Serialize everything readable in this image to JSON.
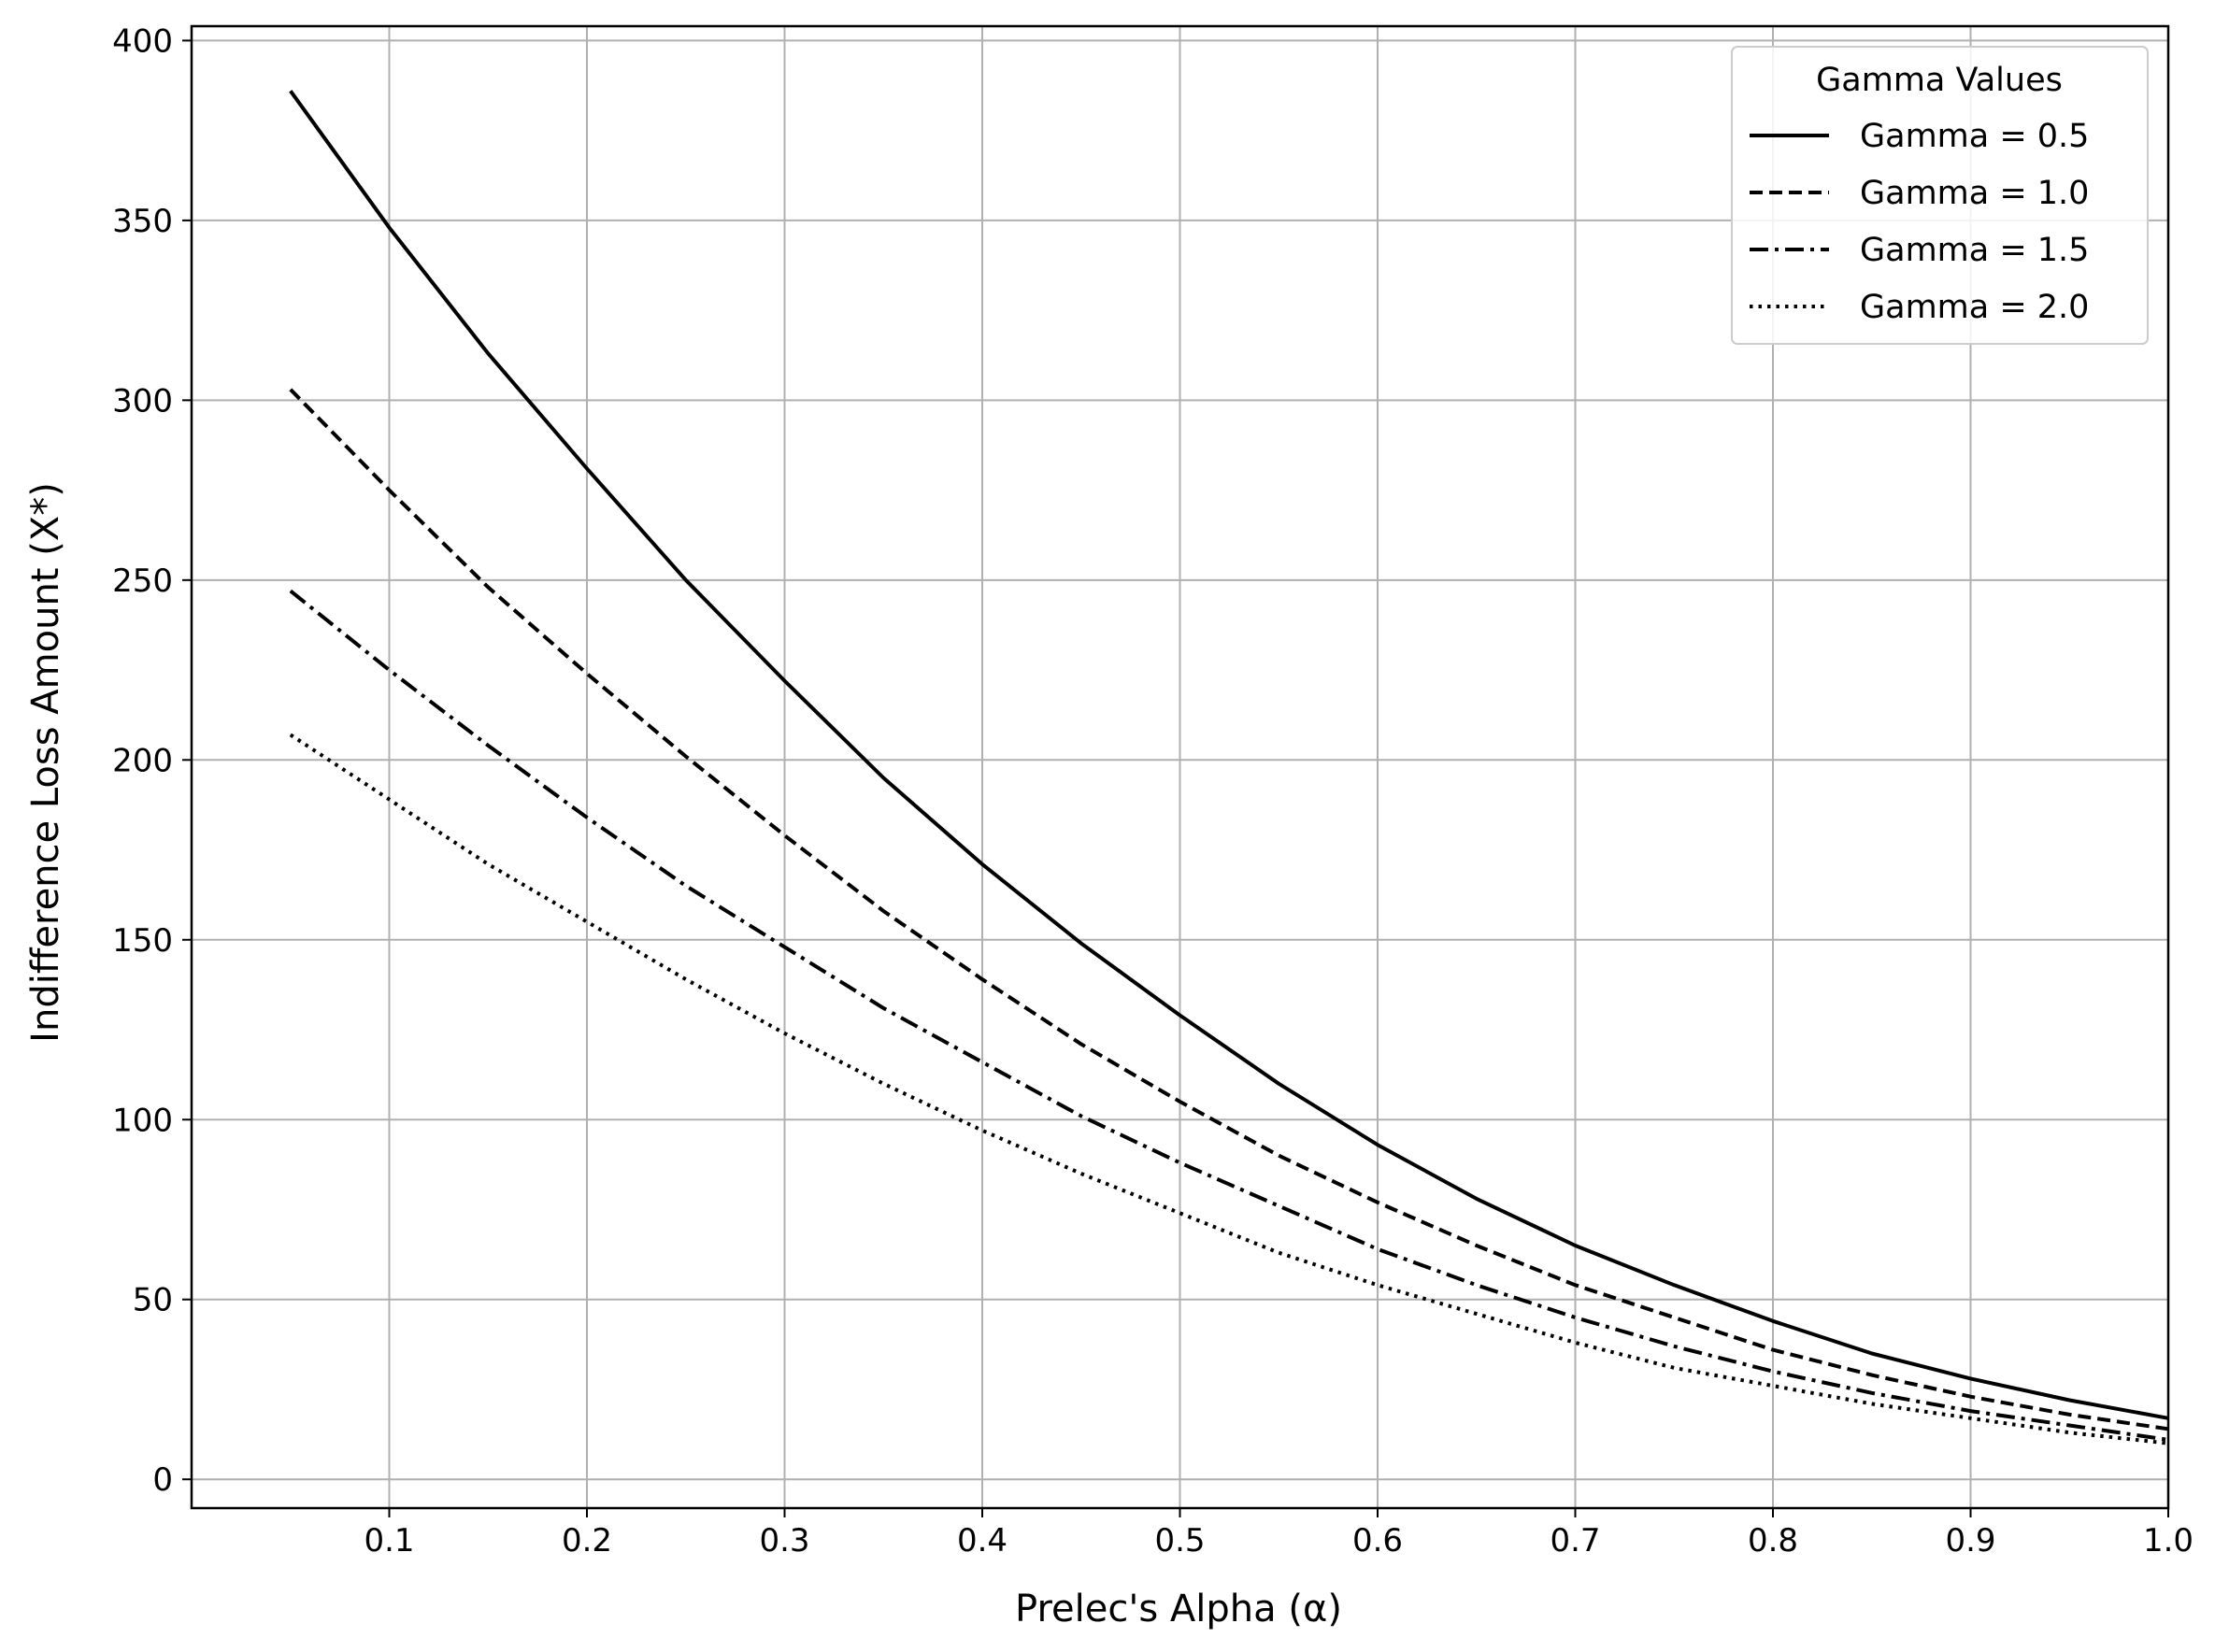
{
  "chart_data": {
    "type": "line",
    "xlabel": "Prelec's Alpha (α)",
    "ylabel": "Indifference Loss Amount (X*)",
    "xlim": [
      0.0,
      1.0
    ],
    "ylim": [
      -8,
      404
    ],
    "x_ticks": [
      0.1,
      0.2,
      0.3,
      0.4,
      0.5,
      0.6,
      0.7,
      0.8,
      0.9,
      1.0
    ],
    "x_tick_labels": [
      "0.1",
      "0.2",
      "0.3",
      "0.4",
      "0.5",
      "0.6",
      "0.7",
      "0.8",
      "0.9",
      "1.0"
    ],
    "y_ticks": [
      0,
      50,
      100,
      150,
      200,
      250,
      300,
      350,
      400
    ],
    "y_tick_labels": [
      "0",
      "50",
      "100",
      "150",
      "200",
      "250",
      "300",
      "350",
      "400"
    ],
    "grid": true,
    "legend": {
      "title": "Gamma Values",
      "position": "top-right"
    },
    "x": [
      0.05,
      0.1,
      0.15,
      0.2,
      0.25,
      0.3,
      0.35,
      0.4,
      0.45,
      0.5,
      0.55,
      0.6,
      0.65,
      0.7,
      0.75,
      0.8,
      0.85,
      0.9,
      0.95,
      1.0
    ],
    "series": [
      {
        "name": "Gamma = 0.5",
        "style": "solid",
        "color": "#000000",
        "values": [
          386,
          348,
          313,
          281,
          250,
          222,
          195,
          171,
          149,
          129,
          110,
          93,
          78,
          65,
          54,
          44,
          35,
          28,
          22,
          17
        ]
      },
      {
        "name": "Gamma = 1.0",
        "style": "dashed",
        "color": "#000000",
        "values": [
          303,
          275,
          248,
          224,
          201,
          179,
          158,
          139,
          121,
          105,
          90,
          77,
          65,
          54,
          45,
          36,
          29,
          23,
          18,
          14
        ]
      },
      {
        "name": "Gamma = 1.5",
        "style": "dashdot",
        "color": "#000000",
        "values": [
          247,
          225,
          204,
          184,
          165,
          148,
          131,
          116,
          101,
          88,
          76,
          64,
          54,
          45,
          37,
          30,
          24,
          19,
          15,
          11
        ]
      },
      {
        "name": "Gamma = 2.0",
        "style": "dotted",
        "color": "#000000",
        "values": [
          207,
          189,
          171,
          155,
          139,
          124,
          110,
          97,
          85,
          74,
          63,
          54,
          46,
          38,
          31,
          26,
          21,
          17,
          13,
          10
        ]
      }
    ]
  }
}
